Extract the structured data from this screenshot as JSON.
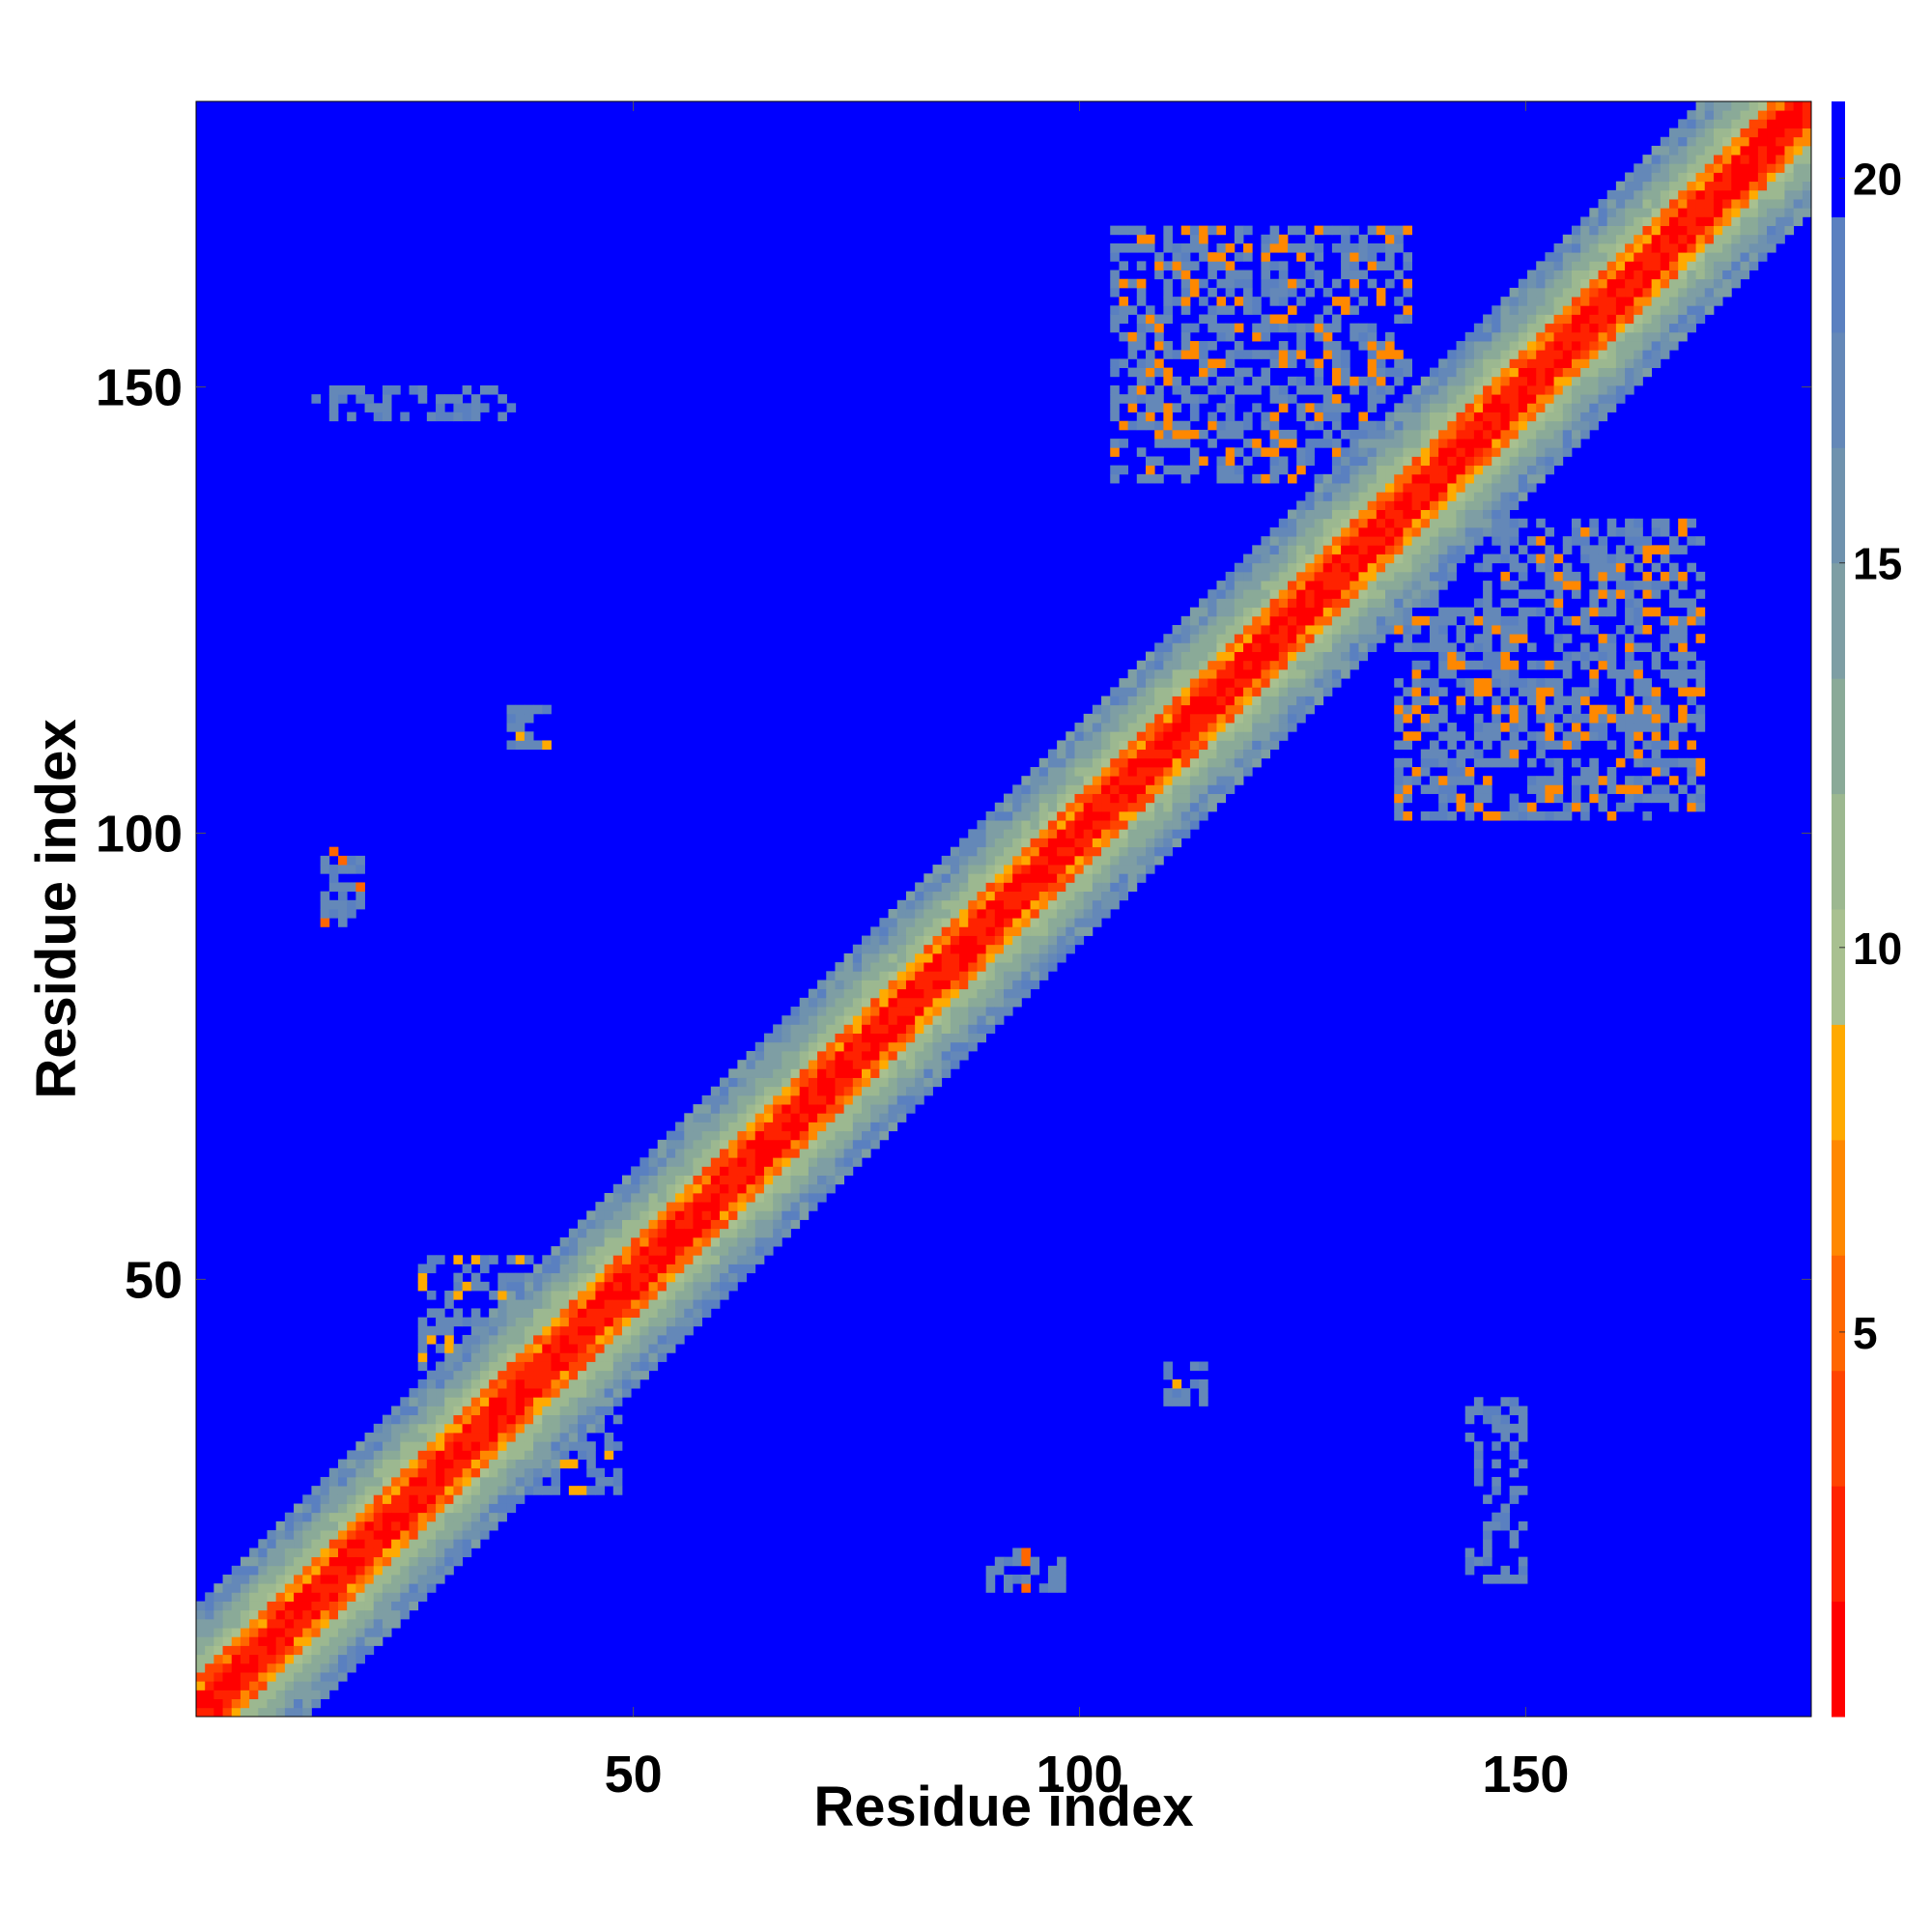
{
  "chart_data": {
    "type": "heatmap",
    "title": "",
    "xlabel": "Residue index",
    "ylabel": "Residue index",
    "xlim": [
      1,
      182
    ],
    "ylim": [
      1,
      182
    ],
    "x_ticks": [
      50,
      100,
      150
    ],
    "y_ticks": [
      50,
      100,
      150
    ],
    "x_tick_labels": [
      "50",
      "100",
      "150"
    ],
    "y_tick_labels": [
      "50",
      "100",
      "150"
    ],
    "grid": false,
    "colorbar": {
      "range": [
        0,
        21
      ],
      "ticks": [
        5,
        10,
        15,
        20
      ],
      "tick_labels": [
        "5",
        "10",
        "15",
        "20"
      ],
      "bands": [
        {
          "min": 0,
          "max": 1.5,
          "color": "#ff0000"
        },
        {
          "min": 1.5,
          "max": 3,
          "color": "#ff2200"
        },
        {
          "min": 3,
          "max": 4.5,
          "color": "#ff4400"
        },
        {
          "min": 4.5,
          "max": 6,
          "color": "#ff6600"
        },
        {
          "min": 6,
          "max": 7.5,
          "color": "#ff8800"
        },
        {
          "min": 7.5,
          "max": 9,
          "color": "#ffaa00"
        },
        {
          "min": 9,
          "max": 10.5,
          "color": "#a8c090"
        },
        {
          "min": 10.5,
          "max": 12,
          "color": "#9cb890"
        },
        {
          "min": 12,
          "max": 13.5,
          "color": "#8aaa98"
        },
        {
          "min": 13.5,
          "max": 15,
          "color": "#7e9ea4"
        },
        {
          "min": 15,
          "max": 16.5,
          "color": "#6f92ae"
        },
        {
          "min": 16.5,
          "max": 18,
          "color": "#6488b8"
        },
        {
          "min": 18,
          "max": 19.5,
          "color": "#5a80c0"
        },
        {
          "min": 19.5,
          "max": 21,
          "color": "#0000ff"
        }
      ]
    },
    "background_value": 21,
    "description": "Symmetric residue-residue distance map with a low-distance diagonal band",
    "diagonal_band": {
      "core_halfwidth": 2,
      "orange_halfwidth": 4,
      "green_halfwidth": 9,
      "gray_halfwidth": 12
    },
    "off_diagonal_clusters": [
      {
        "x_range": [
          104,
          137
        ],
        "y_range": [
          140,
          168
        ],
        "min_value": 3
      },
      {
        "x_range": [
          136,
          170
        ],
        "y_range": [
          102,
          135
        ],
        "min_value": 3
      },
      {
        "x_range": [
          26,
          48
        ],
        "y_range": [
          26,
          52
        ],
        "min_value": 4
      },
      {
        "x_range": [
          15,
          19
        ],
        "y_range": [
          90,
          98
        ],
        "min_value": 2
      },
      {
        "x_range": [
          90,
          98
        ],
        "y_range": [
          15,
          19
        ],
        "min_value": 2
      },
      {
        "x_range": [
          36,
          40
        ],
        "y_range": [
          110,
          114
        ],
        "min_value": 5
      },
      {
        "x_range": [
          110,
          114
        ],
        "y_range": [
          36,
          40
        ],
        "min_value": 5
      },
      {
        "x_range": [
          14,
          36
        ],
        "y_range": [
          147,
          150
        ],
        "min_value": 16
      },
      {
        "x_range": [
          144,
          150
        ],
        "y_range": [
          16,
          36
        ],
        "min_value": 16
      }
    ]
  }
}
